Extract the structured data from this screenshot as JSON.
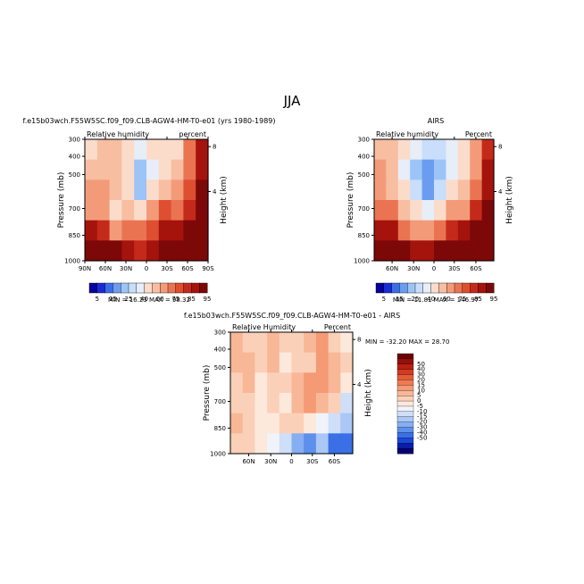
{
  "figure": {
    "season": "JJA"
  },
  "colors": {
    "cb_main": [
      "#08009a",
      "#1a2bd6",
      "#3b6ee6",
      "#6a9df0",
      "#9cc4f7",
      "#c8defb",
      "#e7eef8",
      "#fbdccb",
      "#f8bea2",
      "#f39b79",
      "#ea7452",
      "#de4e31",
      "#c42a1a",
      "#a5130d",
      "#7c0808"
    ],
    "cb_diff": [
      "#060073",
      "#0b1ea6",
      "#1b48d8",
      "#3a6fe6",
      "#5e8fec",
      "#86aef2",
      "#aac7f6",
      "#cfdef9",
      "#f0f4fa",
      "#fde8dc",
      "#fbd0b8",
      "#f8b797",
      "#f49a74",
      "#ee7b53",
      "#e65b37",
      "#d23b22",
      "#b82012",
      "#941009",
      "#6b0303"
    ]
  },
  "panels": {
    "p1": {
      "title": "f.e15b03wch.F55W5SC.f09_f09.CLB-AGW4-HM-T0-e01 (yrs 1980-1989)",
      "left_label": "Relative humidity",
      "right_label": "percent",
      "ylabel": "Pressure (mb)",
      "ylabel2": "Height (km)",
      "yticks": [
        "300",
        "400",
        "500",
        "700",
        "850",
        "1000"
      ],
      "xticks": [
        "90N",
        "60N",
        "30N",
        "0",
        "30S",
        "60S",
        "90S"
      ],
      "zticks": [
        "8",
        "4"
      ],
      "minmax": "MIN =   16.23    MAX =   98.32",
      "cb_labels": [
        "5",
        "15",
        "25",
        "40",
        "60",
        "75",
        "85",
        "95"
      ]
    },
    "p2": {
      "title": "AIRS",
      "left_label": "Relative  humidity",
      "right_label": "Percent",
      "ylabel": "Pressure (mb)",
      "ylabel2": "Height (km)",
      "yticks": [
        "300",
        "400",
        "500",
        "700",
        "850",
        "1000"
      ],
      "xticks": [
        "60N",
        "30N",
        "0",
        "30S",
        "60S"
      ],
      "zticks": [
        "8",
        "4"
      ],
      "minmax": "MIN =   11.81    MAX =  146.97",
      "cb_labels": [
        "5",
        "15",
        "25",
        "40",
        "60",
        "75",
        "85",
        "95"
      ]
    },
    "p3": {
      "title": "f.e15b03wch.F55W5SC.f09_f09.CLB-AGW4-HM-T0-e01 - AIRS",
      "left_label": "Relative Humidity",
      "right_label": "Percent",
      "ylabel": "Pressure (mb)",
      "ylabel2": "Height (km)",
      "yticks": [
        "300",
        "400",
        "500",
        "700",
        "850",
        "1000"
      ],
      "xticks": [
        "60N",
        "30N",
        "0",
        "30S",
        "60S"
      ],
      "zticks": [
        "8",
        "4"
      ],
      "minmax": "MIN = -32.20    MAX =   28.70",
      "cb_labels": [
        "50",
        "40",
        "30",
        "20",
        "15",
        "10",
        "5",
        "0",
        "-5",
        "-10",
        "-15",
        "-20",
        "-30",
        "-40",
        "-50"
      ]
    }
  },
  "chart_data": [
    {
      "type": "heatmap",
      "title": "f.e15b03wch.F55W5SC.f09_f09.CLB-AGW4-HM-T0-e01 (yrs 1980-1989)",
      "xlabel": "",
      "ylabel": "Pressure (mb)",
      "x": [
        "90N",
        "60N",
        "30N",
        "0",
        "30S",
        "60S",
        "90S"
      ],
      "y": [
        300,
        400,
        500,
        700,
        850,
        1000
      ],
      "units": "percent",
      "min": 16.23,
      "max": 98.32,
      "levels": [
        5,
        10,
        15,
        20,
        25,
        30,
        40,
        50,
        60,
        70,
        75,
        80,
        85,
        90,
        95
      ],
      "values": [
        [
          45,
          50,
          50,
          45,
          35,
          40,
          40,
          45,
          70,
          85
        ],
        [
          50,
          55,
          50,
          40,
          20,
          30,
          40,
          50,
          70,
          85
        ],
        [
          60,
          60,
          50,
          40,
          20,
          40,
          55,
          60,
          75,
          90
        ],
        [
          65,
          60,
          45,
          55,
          45,
          60,
          75,
          70,
          80,
          92
        ],
        [
          85,
          80,
          60,
          70,
          70,
          75,
          85,
          85,
          90,
          95
        ],
        [
          95,
          95,
          90,
          85,
          80,
          85,
          90,
          92,
          95,
          95
        ]
      ]
    },
    {
      "type": "heatmap",
      "title": "AIRS",
      "xlabel": "",
      "ylabel": "Pressure (mb)",
      "x": [
        "60N",
        "30N",
        "0",
        "30S",
        "60S"
      ],
      "y": [
        300,
        400,
        500,
        700,
        850,
        1000
      ],
      "units": "Percent",
      "min": 11.81,
      "max": 146.97,
      "levels": [
        5,
        10,
        15,
        20,
        25,
        30,
        40,
        50,
        60,
        70,
        75,
        80,
        85,
        90,
        95
      ],
      "values": [
        [
          55,
          55,
          45,
          30,
          25,
          25,
          35,
          40,
          60,
          80
        ],
        [
          60,
          50,
          35,
          20,
          15,
          20,
          30,
          45,
          65,
          85
        ],
        [
          65,
          55,
          40,
          25,
          15,
          25,
          40,
          55,
          70,
          85
        ],
        [
          70,
          70,
          50,
          45,
          30,
          45,
          60,
          65,
          80,
          90
        ],
        [
          85,
          85,
          70,
          65,
          60,
          70,
          80,
          85,
          92,
          97
        ],
        [
          95,
          95,
          90,
          85,
          85,
          90,
          95,
          97,
          99,
          99
        ]
      ]
    },
    {
      "type": "heatmap",
      "title": "f.e15b03wch.F55W5SC.f09_f09.CLB-AGW4-HM-T0-e01 - AIRS",
      "xlabel": "",
      "ylabel": "Pressure (mb)",
      "x": [
        "60N",
        "30N",
        "0",
        "30S",
        "60S"
      ],
      "y": [
        300,
        400,
        500,
        700,
        850,
        1000
      ],
      "units": "Percent",
      "min": -32.2,
      "max": 28.7,
      "levels": [
        -50,
        -40,
        -30,
        -20,
        -15,
        -10,
        -5,
        0,
        5,
        10,
        15,
        20,
        30,
        40,
        50
      ],
      "values": [
        [
          15,
          10,
          10,
          15,
          10,
          10,
          15,
          20,
          10,
          5
        ],
        [
          15,
          15,
          10,
          15,
          5,
          10,
          10,
          20,
          15,
          10
        ],
        [
          10,
          15,
          5,
          10,
          10,
          15,
          20,
          25,
          15,
          5
        ],
        [
          10,
          10,
          5,
          10,
          5,
          15,
          20,
          15,
          10,
          -5
        ],
        [
          15,
          10,
          5,
          5,
          10,
          10,
          5,
          0,
          -5,
          -10
        ],
        [
          10,
          10,
          5,
          0,
          -5,
          -15,
          -20,
          -10,
          -25,
          -30
        ]
      ]
    }
  ]
}
